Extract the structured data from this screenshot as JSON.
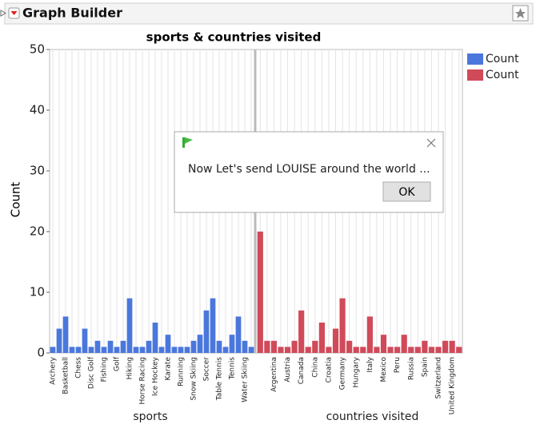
{
  "window": {
    "title": "Graph Builder"
  },
  "chart_data": {
    "type": "bar",
    "title": "sports & countries visited",
    "y_label": "Count",
    "ylim": [
      0,
      50
    ],
    "yticks": [
      0,
      10,
      20,
      30,
      40,
      50
    ],
    "grid": true,
    "legend": "right",
    "series": [
      {
        "name": "Count",
        "group": "sports",
        "color": "#4a77dc",
        "categories": [
          "Archery",
          null,
          "Basketball",
          null,
          "Chess",
          null,
          "Disc Golf",
          null,
          "Fishing",
          null,
          "Golf",
          null,
          "Hiking",
          null,
          "Horse Racing",
          null,
          "Ice Hockey",
          null,
          "Karate",
          null,
          "Running",
          null,
          "Snow Skiing",
          null,
          "Soccer",
          null,
          "Table Tennis",
          null,
          "Tennis",
          null,
          "Water Skiing",
          null
        ],
        "values": [
          1,
          4,
          6,
          1,
          1,
          4,
          1,
          2,
          1,
          2,
          1,
          2,
          9,
          1,
          1,
          2,
          5,
          1,
          3,
          1,
          1,
          1,
          2,
          3,
          7,
          9,
          2,
          1,
          3,
          6,
          2,
          1
        ]
      },
      {
        "name": "Count",
        "group": "countries visited",
        "color": "#d04a5a",
        "categories": [
          null,
          null,
          "Argentina",
          null,
          "Austria",
          null,
          "Canada",
          null,
          "China",
          null,
          "Croatia",
          null,
          "Germany",
          null,
          "Hungary",
          null,
          "Italy",
          null,
          "Mexico",
          null,
          "Peru",
          null,
          "Russia",
          null,
          "Spain",
          null,
          "Switzerland",
          null,
          "United Kingdom",
          null
        ],
        "values": [
          20,
          2,
          2,
          1,
          1,
          2,
          7,
          1,
          2,
          5,
          1,
          4,
          9,
          2,
          1,
          1,
          6,
          1,
          3,
          1,
          1,
          3,
          1,
          1,
          2,
          1,
          1,
          2,
          2,
          1
        ]
      }
    ]
  },
  "dialog": {
    "message": "Now Let's send LOUISE around the world ...",
    "button": "OK"
  }
}
